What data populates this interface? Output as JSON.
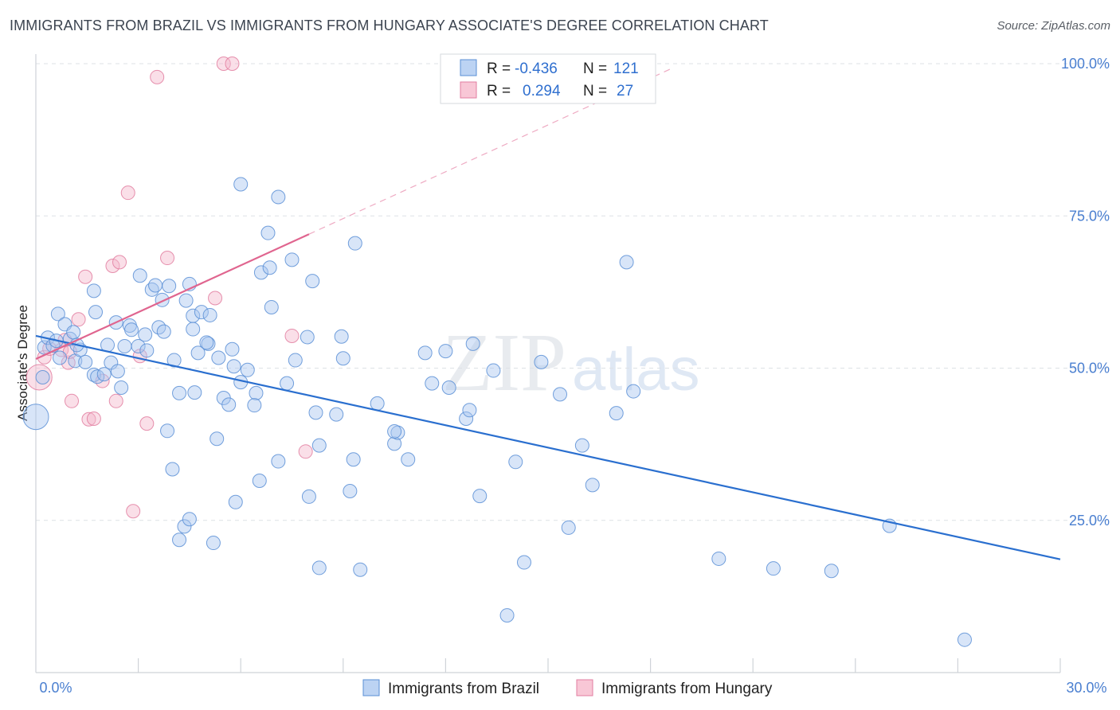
{
  "header": {
    "title": "IMMIGRANTS FROM BRAZIL VS IMMIGRANTS FROM HUNGARY ASSOCIATE'S DEGREE CORRELATION CHART",
    "source": "Source: ZipAtlas.com"
  },
  "watermark": {
    "zip": "ZIP",
    "atlas": "atlas"
  },
  "colors": {
    "brazil_fill": "#a9c6ef",
    "brazil_stroke": "#5a8fd6",
    "brazil_line": "#2a6fcf",
    "hungary_fill": "#f5b8cb",
    "hungary_stroke": "#e27ea0",
    "hungary_line": "#e0658f",
    "grid": "#dde1e6",
    "axis_text": "#4a7fd0"
  },
  "stats_legend": {
    "rows": [
      {
        "r_label": "R =",
        "r_value": "-0.436",
        "n_label": "N =",
        "n_value": "121"
      },
      {
        "r_label": "R =",
        "r_value": "0.294",
        "n_label": "N =",
        "n_value": "27"
      }
    ]
  },
  "bottom_legend": {
    "series1": "Immigrants from Brazil",
    "series2": "Immigrants from Hungary"
  },
  "chart_data": {
    "type": "scatter",
    "title": "IMMIGRANTS FROM BRAZIL VS IMMIGRANTS FROM HUNGARY ASSOCIATE'S DEGREE CORRELATION CHART",
    "xlabel": "",
    "ylabel": "Associate's Degree",
    "xlim": [
      0,
      30
    ],
    "ylim": [
      0,
      100
    ],
    "x_tick_labels": [
      "0.0%",
      "30.0%"
    ],
    "y_ticks": [
      25,
      50,
      75,
      100
    ],
    "y_tick_labels": [
      "25.0%",
      "50.0%",
      "75.0%",
      "100.0%"
    ],
    "grid": true,
    "series": [
      {
        "name": "Immigrants from Brazil",
        "r": -0.436,
        "n": 121,
        "trend": {
          "x": [
            0,
            30
          ],
          "y": [
            55.3,
            18.6
          ]
        },
        "points": [
          [
            0.0,
            42.0
          ],
          [
            0.2,
            48.5
          ],
          [
            0.25,
            53.4
          ],
          [
            0.35,
            55.0
          ],
          [
            0.5,
            53.7
          ],
          [
            0.6,
            54.5
          ],
          [
            0.65,
            58.9
          ],
          [
            0.85,
            57.2
          ],
          [
            0.7,
            51.7
          ],
          [
            1.0,
            54.8
          ],
          [
            1.1,
            55.9
          ],
          [
            1.15,
            51.2
          ],
          [
            1.3,
            53.0
          ],
          [
            1.45,
            51.0
          ],
          [
            1.7,
            48.9
          ],
          [
            1.8,
            48.6
          ],
          [
            1.7,
            62.7
          ],
          [
            1.75,
            59.2
          ],
          [
            2.0,
            49.0
          ],
          [
            2.1,
            53.8
          ],
          [
            2.2,
            50.9
          ],
          [
            2.4,
            49.5
          ],
          [
            2.5,
            46.8
          ],
          [
            2.6,
            53.6
          ],
          [
            2.75,
            57.0
          ],
          [
            2.8,
            56.3
          ],
          [
            3.0,
            53.6
          ],
          [
            3.05,
            65.2
          ],
          [
            3.2,
            55.5
          ],
          [
            3.25,
            52.9
          ],
          [
            3.4,
            62.9
          ],
          [
            3.5,
            63.6
          ],
          [
            3.6,
            56.7
          ],
          [
            3.7,
            61.2
          ],
          [
            3.75,
            56.0
          ],
          [
            3.85,
            39.7
          ],
          [
            3.9,
            63.5
          ],
          [
            4.0,
            33.4
          ],
          [
            4.05,
            51.3
          ],
          [
            4.2,
            45.9
          ],
          [
            4.2,
            21.8
          ],
          [
            4.35,
            24.0
          ],
          [
            4.4,
            61.1
          ],
          [
            4.5,
            25.2
          ],
          [
            4.5,
            63.8
          ],
          [
            4.6,
            58.6
          ],
          [
            4.6,
            56.4
          ],
          [
            4.65,
            46.0
          ],
          [
            4.75,
            52.5
          ],
          [
            4.85,
            59.2
          ],
          [
            5.05,
            54.0
          ],
          [
            5.1,
            58.7
          ],
          [
            5.2,
            21.3
          ],
          [
            5.3,
            38.4
          ],
          [
            5.35,
            51.7
          ],
          [
            5.5,
            45.1
          ],
          [
            5.65,
            44.0
          ],
          [
            5.75,
            53.1
          ],
          [
            5.8,
            50.3
          ],
          [
            5.85,
            28.0
          ],
          [
            6.0,
            47.7
          ],
          [
            6.2,
            49.7
          ],
          [
            6.0,
            80.2
          ],
          [
            6.45,
            45.9
          ],
          [
            6.55,
            31.5
          ],
          [
            6.6,
            65.7
          ],
          [
            6.8,
            72.2
          ],
          [
            6.9,
            60.0
          ],
          [
            6.85,
            66.5
          ],
          [
            7.1,
            34.7
          ],
          [
            7.1,
            78.1
          ],
          [
            7.35,
            47.5
          ],
          [
            7.5,
            67.8
          ],
          [
            7.6,
            51.3
          ],
          [
            7.95,
            55.1
          ],
          [
            8.1,
            64.3
          ],
          [
            8.2,
            42.7
          ],
          [
            8.3,
            37.3
          ],
          [
            8.3,
            17.2
          ],
          [
            8.0,
            28.9
          ],
          [
            8.8,
            42.4
          ],
          [
            8.95,
            55.2
          ],
          [
            9.2,
            29.8
          ],
          [
            9.3,
            35.0
          ],
          [
            9.35,
            70.5
          ],
          [
            9.5,
            16.9
          ],
          [
            10.0,
            44.2
          ],
          [
            10.5,
            37.6
          ],
          [
            10.6,
            39.4
          ],
          [
            10.5,
            39.6
          ],
          [
            10.9,
            35.0
          ],
          [
            11.4,
            52.5
          ],
          [
            11.6,
            47.5
          ],
          [
            12.1,
            46.8
          ],
          [
            12.6,
            41.7
          ],
          [
            12.7,
            43.1
          ],
          [
            12.8,
            54.0
          ],
          [
            13.4,
            49.6
          ],
          [
            13.0,
            29.0
          ],
          [
            14.05,
            34.6
          ],
          [
            13.8,
            9.4
          ],
          [
            14.3,
            18.1
          ],
          [
            14.8,
            51.0
          ],
          [
            15.35,
            45.7
          ],
          [
            15.6,
            23.8
          ],
          [
            16.0,
            37.3
          ],
          [
            16.3,
            30.8
          ],
          [
            17.0,
            42.6
          ],
          [
            17.3,
            67.4
          ],
          [
            17.5,
            46.2
          ],
          [
            20.0,
            18.7
          ],
          [
            21.6,
            17.1
          ],
          [
            23.3,
            16.7
          ],
          [
            25.0,
            24.1
          ],
          [
            27.2,
            5.4
          ],
          [
            5.0,
            54.2
          ],
          [
            6.4,
            43.9
          ],
          [
            9.0,
            51.6
          ],
          [
            12.0,
            52.8
          ],
          [
            2.35,
            57.5
          ],
          [
            1.2,
            53.8
          ]
        ]
      },
      {
        "name": "Immigrants from Hungary",
        "r": 0.294,
        "n": 27,
        "trend": {
          "x": [
            0,
            8.0
          ],
          "y": [
            51.5,
            72.0
          ]
        },
        "points": [
          [
            0.1,
            48.5
          ],
          [
            0.25,
            51.8
          ],
          [
            0.4,
            53.2
          ],
          [
            0.75,
            53.0
          ],
          [
            0.85,
            54.6
          ],
          [
            0.95,
            50.9
          ],
          [
            1.05,
            44.6
          ],
          [
            1.25,
            58.0
          ],
          [
            1.45,
            65.0
          ],
          [
            1.55,
            41.6
          ],
          [
            1.7,
            41.7
          ],
          [
            1.95,
            47.9
          ],
          [
            2.25,
            66.8
          ],
          [
            2.35,
            44.6
          ],
          [
            2.45,
            67.4
          ],
          [
            2.7,
            78.8
          ],
          [
            2.85,
            26.5
          ],
          [
            3.05,
            52.0
          ],
          [
            3.25,
            40.9
          ],
          [
            3.55,
            97.8
          ],
          [
            3.85,
            68.1
          ],
          [
            5.25,
            61.5
          ],
          [
            5.5,
            100.0
          ],
          [
            5.75,
            100.0
          ],
          [
            7.5,
            55.3
          ],
          [
            7.9,
            36.3
          ],
          [
            1.0,
            52.7
          ]
        ]
      }
    ]
  }
}
